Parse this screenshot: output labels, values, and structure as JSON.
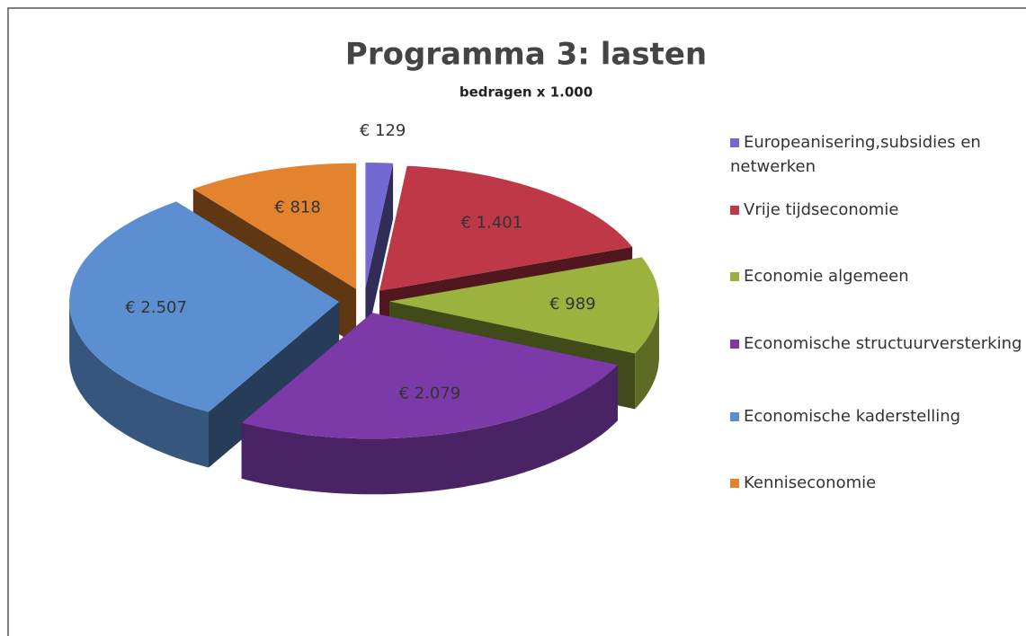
{
  "chart_data": {
    "type": "pie3d",
    "title": "Programma 3: lasten",
    "subtitle": "bedragen x 1.000",
    "categories": [
      "Europeanisering,subsidies en netwerken",
      "Vrije tijdseconomie",
      "Economie algemeen",
      "Economische structuurversterking",
      "Economische kaderstelling",
      "Kenniseconomie"
    ],
    "values": [
      129,
      1401,
      989,
      2079,
      2507,
      818
    ],
    "value_labels": [
      "€ 129",
      "€ 1.401",
      "€ 989",
      "€ 2.079",
      "€ 2.507",
      "€ 818"
    ],
    "colors": [
      "#7468d2",
      "#bf3848",
      "#9bb23e",
      "#7b3aa8",
      "#5c8fd2",
      "#e3832e"
    ],
    "legend": "right"
  }
}
